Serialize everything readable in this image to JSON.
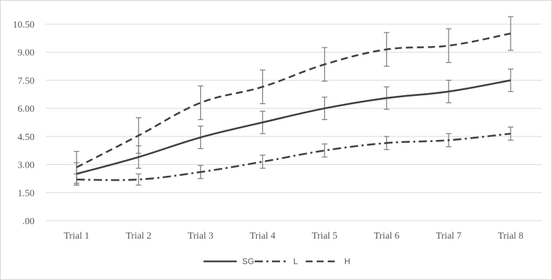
{
  "chart_data": {
    "type": "line",
    "title": "",
    "xlabel": "",
    "ylabel": "",
    "categories": [
      "Trial 1",
      "Trial 2",
      "Trial 3",
      "Trial 4",
      "Trial 5",
      "Trial 6",
      "Trial 7",
      "Trial 8"
    ],
    "y_ticks": [
      ".00",
      "1.50",
      "3.00",
      "4.50",
      "6.00",
      "7.50",
      "9.00",
      "10.50"
    ],
    "y_tick_values": [
      0,
      1.5,
      3,
      4.5,
      6,
      7.5,
      9,
      10.5
    ],
    "ylim": [
      0,
      10.5
    ],
    "grid": true,
    "legend_position": "bottom",
    "series": [
      {
        "name": "SG",
        "style": "solid",
        "color": "#404040",
        "values": [
          2.5,
          3.4,
          4.45,
          5.25,
          6.0,
          6.55,
          6.9,
          7.5
        ],
        "error": [
          0.6,
          0.6,
          0.6,
          0.6,
          0.6,
          0.6,
          0.6,
          0.6
        ]
      },
      {
        "name": "L",
        "style": "dash-dot",
        "color": "#404040",
        "values": [
          2.2,
          2.2,
          2.6,
          3.15,
          3.75,
          4.15,
          4.3,
          4.65
        ],
        "error": [
          0.3,
          0.3,
          0.35,
          0.35,
          0.35,
          0.35,
          0.35,
          0.35
        ]
      },
      {
        "name": "H",
        "style": "dashed",
        "color": "#404040",
        "values": [
          2.85,
          4.55,
          6.3,
          7.15,
          8.35,
          9.15,
          9.35,
          10.0
        ],
        "error": [
          0.85,
          0.95,
          0.9,
          0.9,
          0.9,
          0.9,
          0.9,
          0.9
        ]
      }
    ]
  },
  "colors": {
    "gridline": "#d9d9d9",
    "axis": "#d9d9d9",
    "error_bar": "#7f7f7f",
    "text": "#595959"
  }
}
